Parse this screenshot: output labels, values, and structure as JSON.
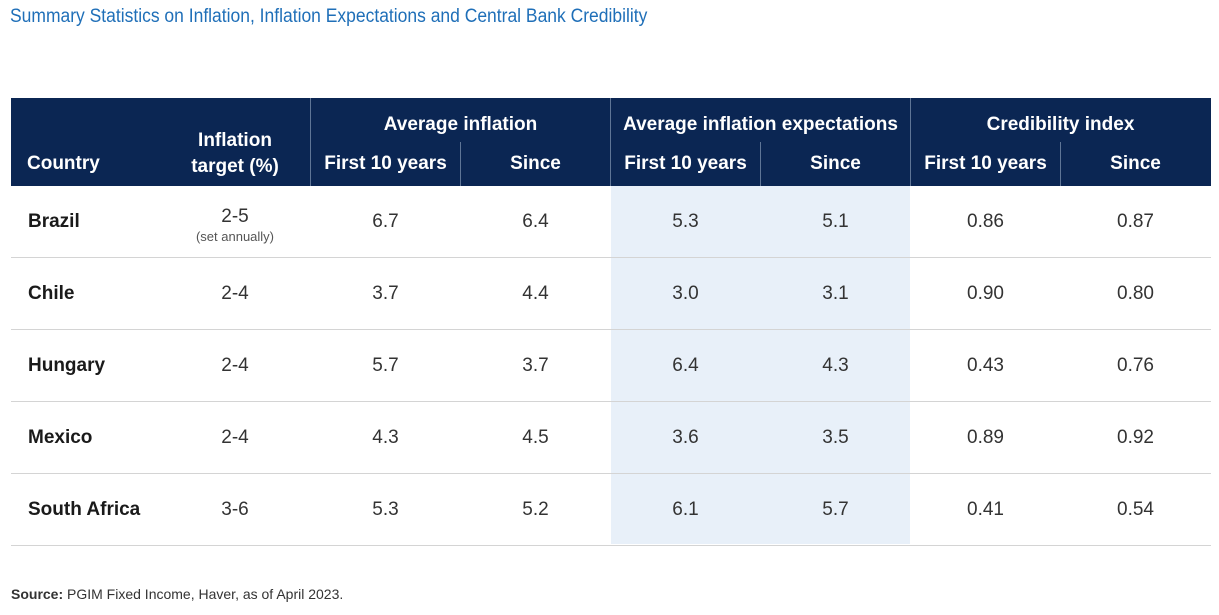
{
  "title": "Summary Statistics on Inflation, Inflation Expectations and Central Bank Credibility",
  "header": {
    "country": "Country",
    "target_line1": "Inflation",
    "target_line2": "target (%)",
    "avg_inflation": "Average inflation",
    "avg_expectations": "Average inflation expectations",
    "credibility": "Credibility index",
    "first10": "First 10 years",
    "since": "Since"
  },
  "rows": [
    {
      "country": "Brazil",
      "target": "2-5",
      "target_note": "(set annually)",
      "inf_first": "6.7",
      "inf_since": "6.4",
      "exp_first": "5.3",
      "exp_since": "5.1",
      "cred_first": "0.86",
      "cred_since": "0.87"
    },
    {
      "country": "Chile",
      "target": "2-4",
      "target_note": "",
      "inf_first": "3.7",
      "inf_since": "4.4",
      "exp_first": "3.0",
      "exp_since": "3.1",
      "cred_first": "0.90",
      "cred_since": "0.80"
    },
    {
      "country": "Hungary",
      "target": "2-4",
      "target_note": "",
      "inf_first": "5.7",
      "inf_since": "3.7",
      "exp_first": "6.4",
      "exp_since": "4.3",
      "cred_first": "0.43",
      "cred_since": "0.76"
    },
    {
      "country": "Mexico",
      "target": "2-4",
      "target_note": "",
      "inf_first": "4.3",
      "inf_since": "4.5",
      "exp_first": "3.6",
      "exp_since": "3.5",
      "cred_first": "0.89",
      "cred_since": "0.92"
    },
    {
      "country": "South Africa",
      "target": "3-6",
      "target_note": "",
      "inf_first": "5.3",
      "inf_since": "5.2",
      "exp_first": "6.1",
      "exp_since": "5.7",
      "cred_first": "0.41",
      "cred_since": "0.54"
    }
  ],
  "source_label": "Source:",
  "source_text": " PGIM Fixed Income, Haver, as of April 2023.",
  "colors": {
    "title": "#1f6fb8",
    "header_bg": "#0b2653",
    "band": "#e8f0f9"
  }
}
